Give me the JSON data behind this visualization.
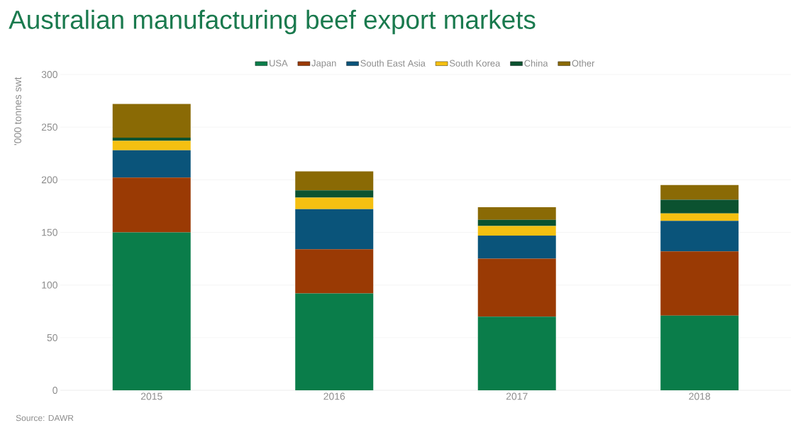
{
  "chart_data": {
    "type": "bar",
    "title": "Australian manufacturing beef export markets",
    "ylabel": "'000 tonnes swt",
    "categories": [
      "2015",
      "2016",
      "2017",
      "2018"
    ],
    "series": [
      {
        "name": "USA",
        "color": "#0a7d4a",
        "values": [
          150,
          92,
          70,
          71
        ]
      },
      {
        "name": "Japan",
        "color": "#9a3a04",
        "values": [
          52,
          42,
          55,
          61
        ]
      },
      {
        "name": "South East Asia",
        "color": "#0a547a",
        "values": [
          26,
          38,
          22,
          29
        ]
      },
      {
        "name": "South Korea",
        "color": "#f5c011",
        "values": [
          9,
          11,
          9,
          7
        ]
      },
      {
        "name": "China",
        "color": "#0b5230",
        "values": [
          3,
          7,
          6,
          13
        ]
      },
      {
        "name": "Other",
        "color": "#8a6a05",
        "values": [
          32,
          18,
          12,
          14
        ]
      }
    ],
    "stacked": true,
    "ylim": [
      0,
      300
    ],
    "yticks": [
      0,
      50,
      100,
      150,
      200,
      250,
      300
    ],
    "grid": "y",
    "legend": "top",
    "annotations": [
      "Source: DAWR"
    ]
  }
}
